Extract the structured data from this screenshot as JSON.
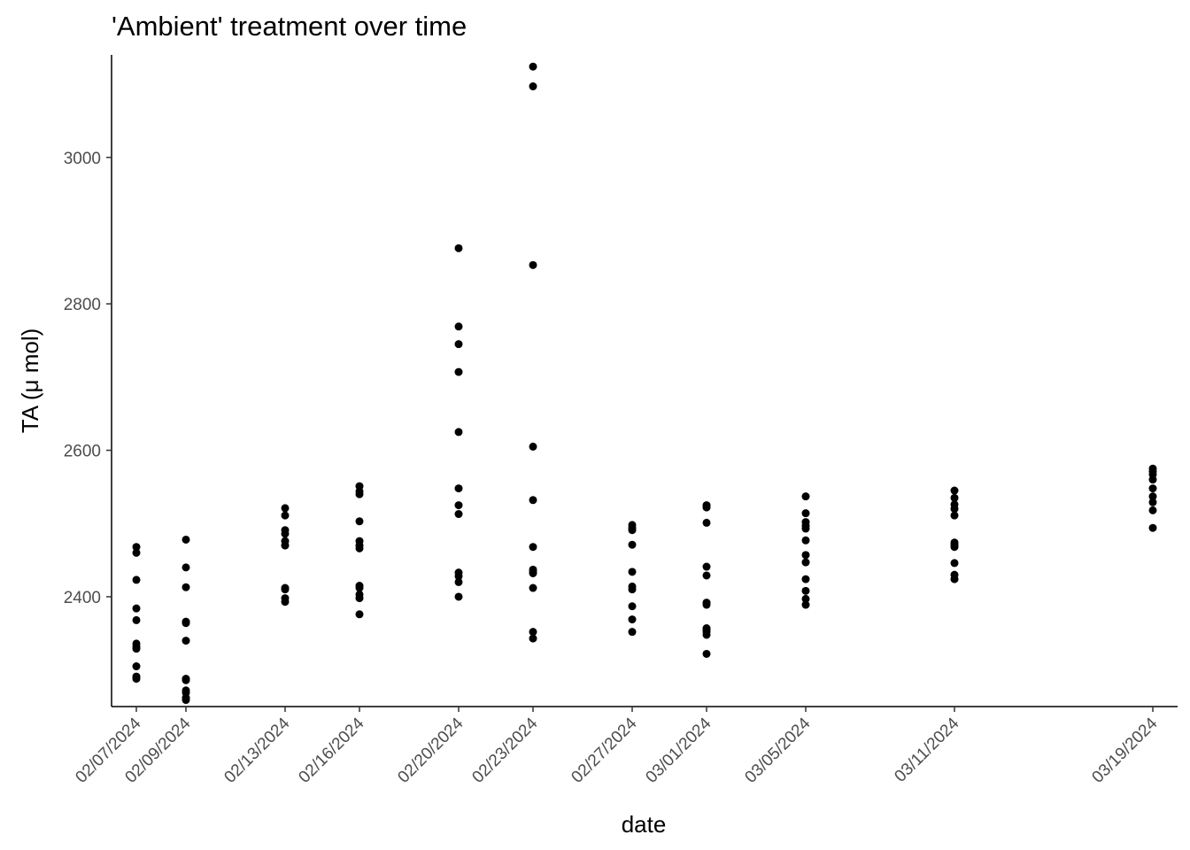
{
  "chart_data": {
    "type": "scatter",
    "title": "'Ambient' treatment over time",
    "xlabel": "date",
    "ylabel": "TA (μ mol)",
    "x_axis": "date",
    "xlim": [
      "2024-02-06",
      "2024-03-20"
    ],
    "ylim": [
      2250,
      3140
    ],
    "grid": false,
    "legend": "none",
    "x_ticks": [
      {
        "date": "2024-02-07",
        "label": "02/07/2024"
      },
      {
        "date": "2024-02-09",
        "label": "02/09/2024"
      },
      {
        "date": "2024-02-13",
        "label": "02/13/2024"
      },
      {
        "date": "2024-02-16",
        "label": "02/16/2024"
      },
      {
        "date": "2024-02-20",
        "label": "02/20/2024"
      },
      {
        "date": "2024-02-23",
        "label": "02/23/2024"
      },
      {
        "date": "2024-02-27",
        "label": "02/27/2024"
      },
      {
        "date": "2024-03-01",
        "label": "03/01/2024"
      },
      {
        "date": "2024-03-05",
        "label": "03/05/2024"
      },
      {
        "date": "2024-03-11",
        "label": "03/11/2024"
      },
      {
        "date": "2024-03-19",
        "label": "03/19/2024"
      }
    ],
    "y_ticks": [
      {
        "value": 2400,
        "label": "2400"
      },
      {
        "value": 2600,
        "label": "2600"
      },
      {
        "value": 2800,
        "label": "2800"
      },
      {
        "value": 3000,
        "label": "3000"
      }
    ],
    "groups": [
      {
        "date": "2024-02-07",
        "y": [
          2468,
          2460,
          2423,
          2384,
          2368,
          2336,
          2332,
          2329,
          2305,
          2291,
          2288
        ]
      },
      {
        "date": "2024-02-09",
        "y": [
          2478,
          2440,
          2413,
          2366,
          2364,
          2340,
          2288,
          2286,
          2272,
          2269,
          2262,
          2259
        ]
      },
      {
        "date": "2024-02-13",
        "y": [
          2521,
          2511,
          2491,
          2486,
          2476,
          2470,
          2412,
          2410,
          2398,
          2393
        ]
      },
      {
        "date": "2024-02-16",
        "y": [
          2551,
          2544,
          2540,
          2503,
          2476,
          2470,
          2466,
          2415,
          2412,
          2403,
          2398,
          2376
        ]
      },
      {
        "date": "2024-02-20",
        "y": [
          2876,
          2769,
          2745,
          2707,
          2625,
          2548,
          2525,
          2513,
          2433,
          2428,
          2420,
          2400
        ]
      },
      {
        "date": "2024-02-23",
        "y": [
          3124,
          3097,
          2853,
          2605,
          2532,
          2468,
          2437,
          2434,
          2432,
          2412,
          2352,
          2343
        ]
      },
      {
        "date": "2024-02-27",
        "y": [
          2498,
          2494,
          2491,
          2471,
          2434,
          2414,
          2410,
          2387,
          2369,
          2352
        ]
      },
      {
        "date": "2024-03-01",
        "y": [
          2525,
          2522,
          2501,
          2441,
          2429,
          2392,
          2389,
          2357,
          2355,
          2352,
          2348,
          2322
        ]
      },
      {
        "date": "2024-03-05",
        "y": [
          2537,
          2514,
          2502,
          2497,
          2493,
          2477,
          2457,
          2447,
          2424,
          2408,
          2397,
          2389
        ]
      },
      {
        "date": "2024-03-11",
        "y": [
          2545,
          2535,
          2526,
          2520,
          2511,
          2474,
          2471,
          2468,
          2446,
          2430,
          2424
        ]
      },
      {
        "date": "2024-03-19",
        "y": [
          2575,
          2571,
          2567,
          2560,
          2548,
          2537,
          2529,
          2518,
          2494
        ]
      }
    ]
  }
}
